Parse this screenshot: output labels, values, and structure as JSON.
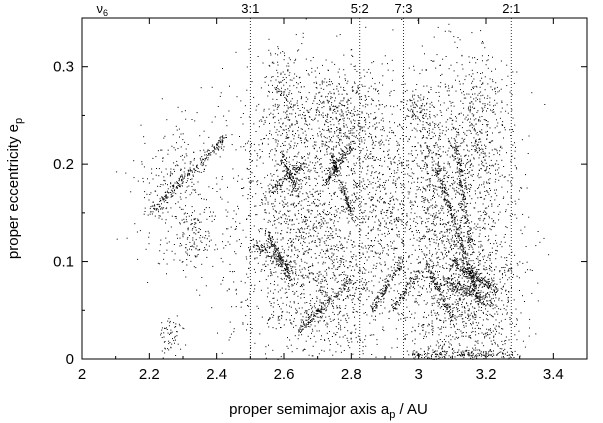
{
  "chart_data": {
    "type": "scatter",
    "xlabel": "proper semimajor axis a",
    "xlabel_sub": "p",
    "xlabel_unit": " / AU",
    "ylabel": "proper eccentricity e",
    "ylabel_sub": "p",
    "xlim": [
      2.0,
      3.5
    ],
    "ylim": [
      0.0,
      0.35
    ],
    "x_ticks": [
      {
        "v": 2.0,
        "label": "2"
      },
      {
        "v": 2.2,
        "label": "2.2"
      },
      {
        "v": 2.4,
        "label": "2.4"
      },
      {
        "v": 2.6,
        "label": "2.6"
      },
      {
        "v": 2.8,
        "label": "2.8"
      },
      {
        "v": 3.0,
        "label": "3"
      },
      {
        "v": 3.2,
        "label": "3.2"
      },
      {
        "v": 3.4,
        "label": "3.4"
      }
    ],
    "y_ticks": [
      {
        "v": 0.0,
        "label": "0"
      },
      {
        "v": 0.1,
        "label": "0.1"
      },
      {
        "v": 0.2,
        "label": "0.2"
      },
      {
        "v": 0.3,
        "label": "0.3"
      }
    ],
    "resonances": [
      {
        "label": "3:1",
        "a": 2.5,
        "line": true
      },
      {
        "label": "5:2",
        "a": 2.825,
        "line": true
      },
      {
        "label": "7:3",
        "a": 2.955,
        "line": true
      },
      {
        "label": "2:1",
        "a": 3.275,
        "line": true
      }
    ],
    "secular_label": {
      "symbol": "ν",
      "sub": "6",
      "a": 2.06
    },
    "grid": false,
    "legend": "none",
    "clusters": [
      {
        "x": 2.26,
        "y": 0.16,
        "sx": 0.06,
        "sy": 0.035,
        "n": 180
      },
      {
        "x": 2.31,
        "y": 0.19,
        "sx": 0.05,
        "sy": 0.03,
        "n": 120
      },
      {
        "x": 2.33,
        "y": 0.12,
        "sx": 0.025,
        "sy": 0.015,
        "n": 90
      },
      {
        "x": 2.26,
        "y": 0.025,
        "sx": 0.02,
        "sy": 0.01,
        "n": 60
      },
      {
        "x": 2.65,
        "y": 0.16,
        "sx": 0.12,
        "sy": 0.07,
        "n": 1400
      },
      {
        "x": 2.77,
        "y": 0.25,
        "sx": 0.05,
        "sy": 0.03,
        "n": 400
      },
      {
        "x": 2.6,
        "y": 0.27,
        "sx": 0.03,
        "sy": 0.025,
        "n": 180
      },
      {
        "x": 2.72,
        "y": 0.08,
        "sx": 0.1,
        "sy": 0.05,
        "n": 700
      },
      {
        "x": 2.89,
        "y": 0.18,
        "sx": 0.05,
        "sy": 0.06,
        "n": 450
      },
      {
        "x": 3.1,
        "y": 0.15,
        "sx": 0.1,
        "sy": 0.08,
        "n": 1500
      },
      {
        "x": 3.15,
        "y": 0.06,
        "sx": 0.08,
        "sy": 0.04,
        "n": 700
      },
      {
        "x": 3.18,
        "y": 0.24,
        "sx": 0.05,
        "sy": 0.04,
        "n": 300
      },
      {
        "x": 2.99,
        "y": 0.26,
        "sx": 0.015,
        "sy": 0.008,
        "n": 60
      },
      {
        "x": 3.03,
        "y": 0.2,
        "sx": 0.02,
        "sy": 0.04,
        "n": 150
      }
    ],
    "families": [
      {
        "x0": 2.2,
        "y0": 0.15,
        "x1": 2.43,
        "y1": 0.23,
        "n": 220
      },
      {
        "x0": 2.55,
        "y0": 0.13,
        "x1": 2.62,
        "y1": 0.08,
        "n": 120
      },
      {
        "x0": 2.51,
        "y0": 0.12,
        "x1": 2.63,
        "y1": 0.09,
        "n": 100
      },
      {
        "x0": 2.55,
        "y0": 0.17,
        "x1": 2.66,
        "y1": 0.2,
        "n": 120
      },
      {
        "x0": 2.59,
        "y0": 0.21,
        "x1": 2.64,
        "y1": 0.17,
        "n": 90
      },
      {
        "x0": 2.72,
        "y0": 0.18,
        "x1": 2.8,
        "y1": 0.22,
        "n": 140
      },
      {
        "x0": 2.74,
        "y0": 0.21,
        "x1": 2.8,
        "y1": 0.15,
        "n": 140
      },
      {
        "x0": 2.64,
        "y0": 0.03,
        "x1": 2.8,
        "y1": 0.08,
        "n": 160
      },
      {
        "x0": 2.86,
        "y0": 0.05,
        "x1": 2.95,
        "y1": 0.1,
        "n": 130
      },
      {
        "x0": 2.92,
        "y0": 0.05,
        "x1": 3.0,
        "y1": 0.09,
        "n": 100
      },
      {
        "x0": 3.05,
        "y0": 0.2,
        "x1": 3.18,
        "y1": 0.06,
        "n": 260
      },
      {
        "x0": 3.1,
        "y0": 0.1,
        "x1": 3.23,
        "y1": 0.07,
        "n": 200
      },
      {
        "x0": 3.02,
        "y0": 0.1,
        "x1": 3.1,
        "y1": 0.04,
        "n": 120
      },
      {
        "x0": 3.07,
        "y0": 0.08,
        "x1": 3.22,
        "y1": 0.06,
        "n": 140
      },
      {
        "x0": 2.98,
        "y0": 0.005,
        "x1": 3.28,
        "y1": 0.005,
        "n": 200
      },
      {
        "x0": 3.11,
        "y0": 0.22,
        "x1": 3.15,
        "y1": 0.12,
        "n": 150
      }
    ]
  }
}
